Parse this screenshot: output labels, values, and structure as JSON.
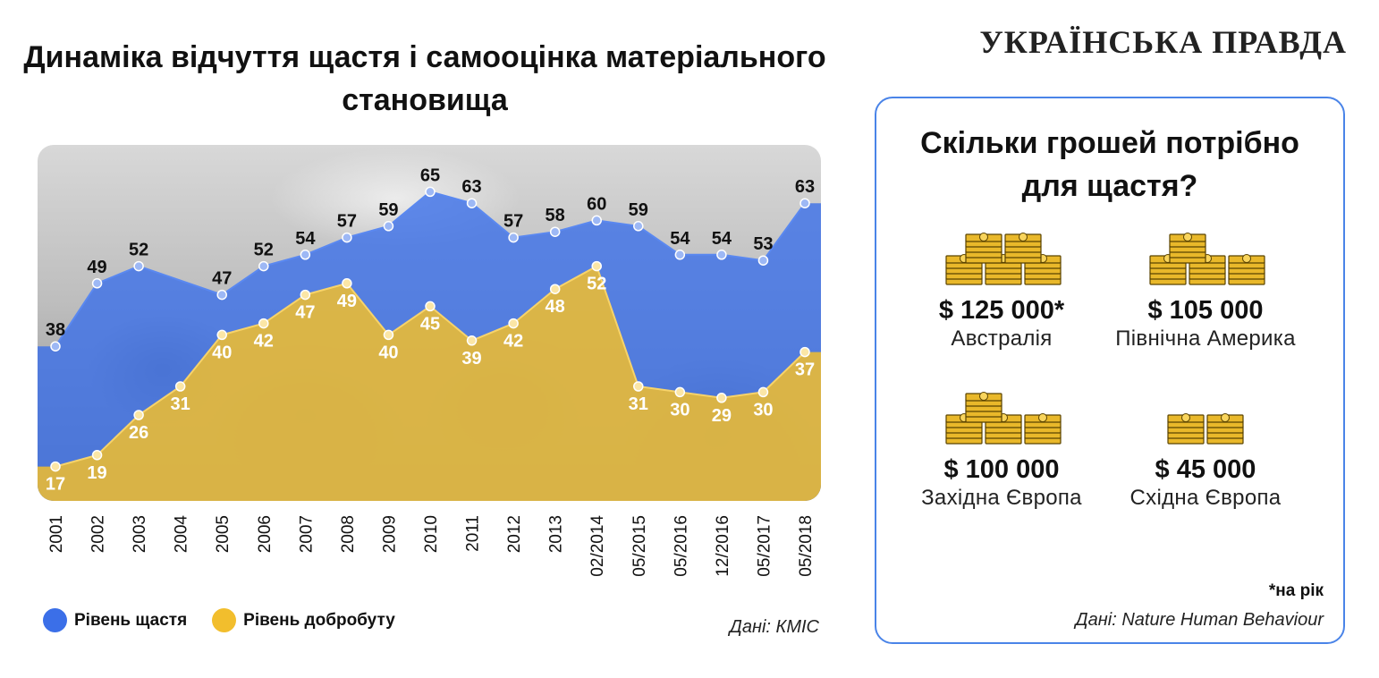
{
  "header": {
    "title_line1": "Динаміка відчуття щастя і самооцінка матеріального",
    "title_line2": "становища",
    "brand": "УКРАЇНСЬКА ПРАВДА"
  },
  "chart_data": {
    "type": "area",
    "categories": [
      "2001",
      "2002",
      "2003",
      "2004",
      "2005",
      "2006",
      "2007",
      "2008",
      "2009",
      "2010",
      "2011",
      "2012",
      "2013",
      "02/2014",
      "05/2015",
      "05/2016",
      "12/2016",
      "05/2017",
      "05/2018"
    ],
    "series": [
      {
        "name": "Рівень щастя",
        "color": "#3b6fe8",
        "values": [
          38,
          49,
          52,
          null,
          47,
          52,
          54,
          57,
          59,
          65,
          63,
          57,
          58,
          60,
          59,
          54,
          54,
          53,
          63
        ]
      },
      {
        "name": "Рівень добробуту",
        "color": "#f2be2d",
        "values": [
          17,
          19,
          26,
          31,
          40,
          42,
          47,
          49,
          40,
          45,
          39,
          42,
          48,
          52,
          31,
          30,
          29,
          30,
          37
        ]
      }
    ],
    "legend": "bottom-left",
    "grid": false
  },
  "source_left": "Дані: КМІС",
  "panel": {
    "title_line1": "Скільки грошей потрібно",
    "title_line2": "для щастя?",
    "regions": [
      {
        "amount": "$ 125 000*",
        "name": "Австралія",
        "stacks": 4
      },
      {
        "amount": "$ 105 000",
        "name": "Північна Америка",
        "stacks": 3
      },
      {
        "amount": "$ 100 000",
        "name": "Західна Європа",
        "stacks": 3
      },
      {
        "amount": "$ 45 000",
        "name": "Східна Європа",
        "stacks": 2
      }
    ],
    "footnote": "*на рік",
    "source": "Дані: Nature Human Behaviour"
  },
  "colors": {
    "happiness": "#3b6fe8",
    "welfare": "#f2be2d",
    "panel_border": "#4a84e8",
    "money": "#e9b82a"
  }
}
